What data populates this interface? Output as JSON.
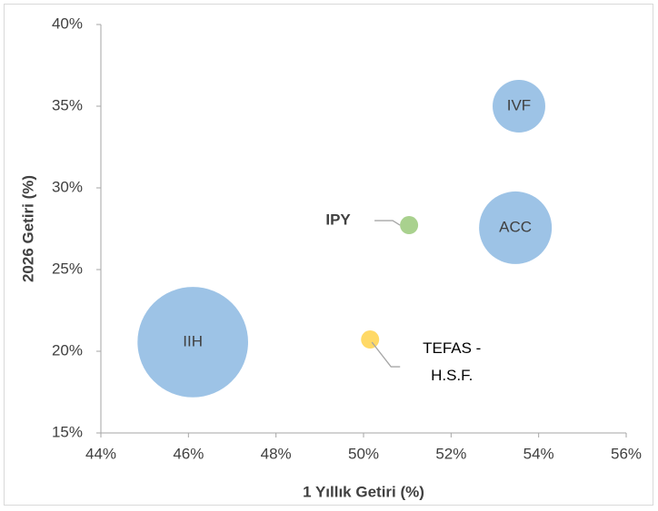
{
  "chart_data": {
    "type": "bubble",
    "xlabel": "1 Yıllık Getiri (%)",
    "ylabel": "2026 Getiri (%)",
    "labels": [
      "IIH",
      "IVF",
      "ACC",
      "IPY",
      "TEFAS - H.S.F."
    ],
    "x": [
      46.1,
      53.55,
      53.47,
      51.04,
      50.15
    ],
    "values": [
      20.56,
      35.0,
      27.56,
      27.72,
      20.72
    ],
    "sizes": [
      3700,
      840,
      1600,
      100,
      100
    ],
    "colors": [
      "#9dc3e6",
      "#9dc3e6",
      "#9dc3e6",
      "#a9d18e",
      "#ffd966"
    ],
    "xlim": [
      44,
      56
    ],
    "xticks": [
      {
        "value": 44,
        "label": "44%"
      },
      {
        "value": 46,
        "label": "46%"
      },
      {
        "value": 48,
        "label": "48%"
      },
      {
        "value": 50,
        "label": "50%"
      },
      {
        "value": 52,
        "label": "52%"
      },
      {
        "value": 54,
        "label": "54%"
      },
      {
        "value": 56,
        "label": "56%"
      }
    ],
    "ylim": [
      15,
      40
    ],
    "yticks": [
      {
        "value": 15,
        "label": "15%"
      },
      {
        "value": 20,
        "label": "20%"
      },
      {
        "value": 25,
        "label": "25%"
      },
      {
        "value": 30,
        "label": "30%"
      },
      {
        "value": 35,
        "label": "35%"
      },
      {
        "value": 40,
        "label": "40%"
      }
    ],
    "grid": false
  }
}
